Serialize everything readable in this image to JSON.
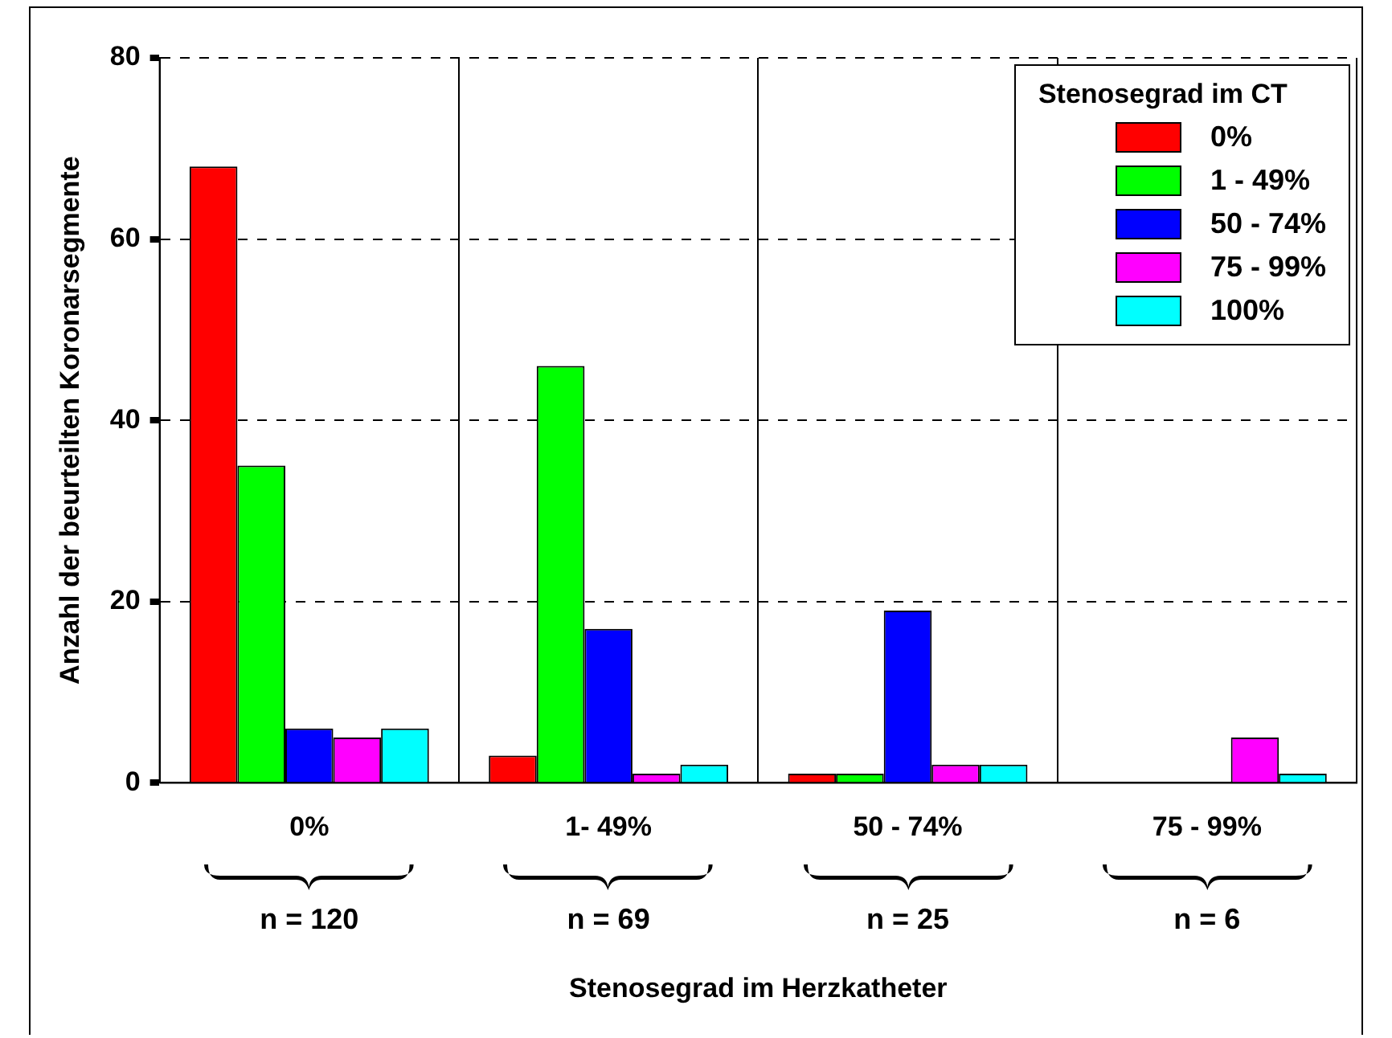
{
  "chart_data": {
    "type": "bar",
    "xlabel": "Stenosegrad im Herzkatheter",
    "ylabel": "Anzahl der beurteilten Koronarsegmente",
    "legend_title": "Stenosegrad im CT",
    "categories": [
      "0%",
      "1- 49%",
      "50 - 74%",
      "75 - 99%"
    ],
    "series": [
      {
        "name": "0%",
        "color": "#ff0000",
        "values": [
          68,
          3,
          1,
          0
        ]
      },
      {
        "name": "1 - 49%",
        "color": "#00ff00",
        "values": [
          35,
          46,
          1,
          0
        ]
      },
      {
        "name": "50 - 74%",
        "color": "#0000ff",
        "values": [
          6,
          17,
          19,
          0
        ]
      },
      {
        "name": "75 - 99%",
        "color": "#ff00ff",
        "values": [
          5,
          1,
          2,
          5
        ]
      },
      {
        "name": "100%",
        "color": "#00ffff",
        "values": [
          6,
          2,
          2,
          1
        ]
      }
    ],
    "annotations": [
      "n = 120",
      "n = 69",
      "n = 25",
      "n = 6"
    ],
    "ylim": [
      0,
      80
    ],
    "yticks": [
      0,
      20,
      40,
      60,
      80
    ],
    "grid": true,
    "legend": "top right"
  }
}
